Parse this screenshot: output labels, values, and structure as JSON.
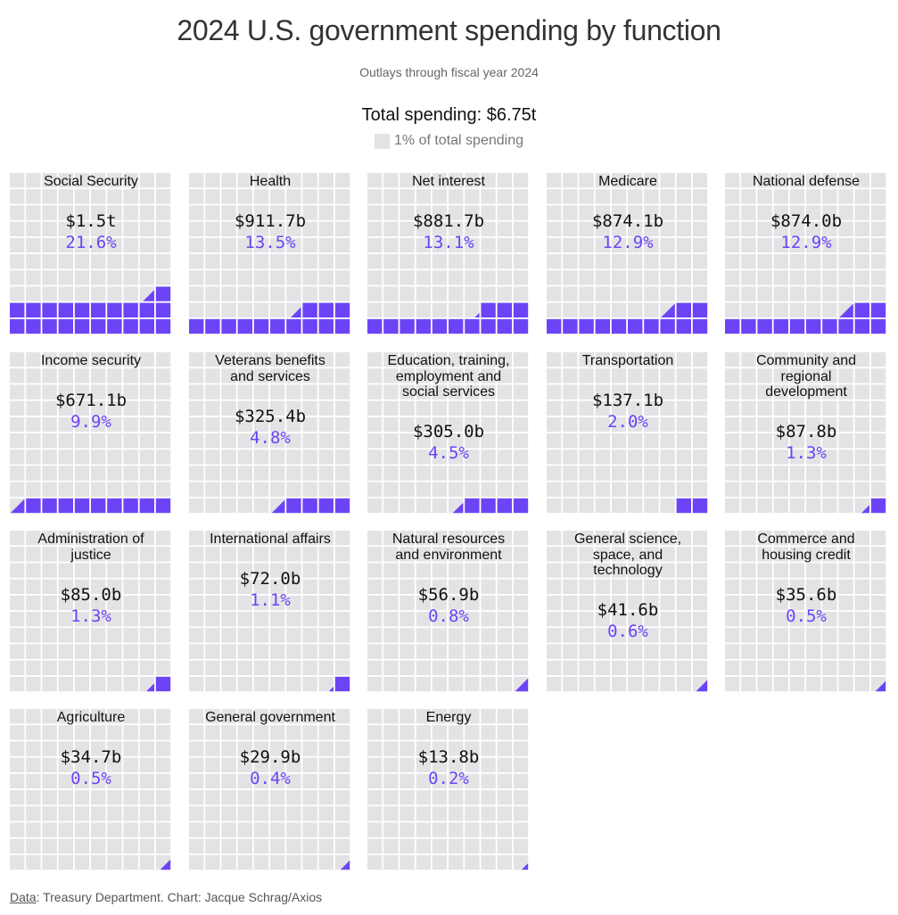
{
  "title": "2024 U.S. government spending by function",
  "subtitle": "Outlays through fiscal year 2024",
  "total_label": "Total spending: $6.75t",
  "legend_label": "1% of total spending",
  "footer": {
    "data_link": "Data",
    "text": ": Treasury Department. Chart: Jacque Schrag/Axios"
  },
  "colors": {
    "fill": "#6c44f5",
    "empty": "#e3e3e6",
    "percent_text": "#6c44f5"
  },
  "chart_data": {
    "type": "waffle",
    "title": "2024 U.S. government spending by function",
    "total": "$6.75t",
    "unit": "1% of total spending",
    "grid": "10x10",
    "categories": [
      {
        "name": "Social Security",
        "value": "$1.5t",
        "percent": 21.6
      },
      {
        "name": "Health",
        "value": "$911.7b",
        "percent": 13.5
      },
      {
        "name": "Net interest",
        "value": "$881.7b",
        "percent": 13.1
      },
      {
        "name": "Medicare",
        "value": "$874.1b",
        "percent": 12.9
      },
      {
        "name": "National defense",
        "value": "$874.0b",
        "percent": 12.9
      },
      {
        "name": "Income security",
        "value": "$671.1b",
        "percent": 9.9
      },
      {
        "name": "Veterans benefits and services",
        "value": "$325.4b",
        "percent": 4.8
      },
      {
        "name": "Education, training, employment and social services",
        "value": "$305.0b",
        "percent": 4.5
      },
      {
        "name": "Transportation",
        "value": "$137.1b",
        "percent": 2.0
      },
      {
        "name": "Community and regional development",
        "value": "$87.8b",
        "percent": 1.3
      },
      {
        "name": "Administration of justice",
        "value": "$85.0b",
        "percent": 1.3
      },
      {
        "name": "International affairs",
        "value": "$72.0b",
        "percent": 1.1
      },
      {
        "name": "Natural resources and environment",
        "value": "$56.9b",
        "percent": 0.8
      },
      {
        "name": "General science, space, and technology",
        "value": "$41.6b",
        "percent": 0.6
      },
      {
        "name": "Commerce and housing credit",
        "value": "$35.6b",
        "percent": 0.5
      },
      {
        "name": "Agriculture",
        "value": "$34.7b",
        "percent": 0.5
      },
      {
        "name": "General government",
        "value": "$29.9b",
        "percent": 0.4
      },
      {
        "name": "Energy",
        "value": "$13.8b",
        "percent": 0.2
      }
    ],
    "labels": [
      [
        "Social Security"
      ],
      [
        "Health"
      ],
      [
        "Net interest"
      ],
      [
        "Medicare"
      ],
      [
        "National defense"
      ],
      [
        "Income security"
      ],
      [
        "Veterans benefits",
        "and services"
      ],
      [
        "Education, training,",
        "employment and",
        "social services"
      ],
      [
        "Transportation"
      ],
      [
        "Community and",
        "regional",
        "development"
      ],
      [
        "Administration of",
        "justice"
      ],
      [
        "International affairs"
      ],
      [
        "Natural resources",
        "and environment"
      ],
      [
        "General science,",
        "space, and",
        "technology"
      ],
      [
        "Commerce and",
        "housing credit"
      ],
      [
        "Agriculture"
      ],
      [
        "General government"
      ],
      [
        "Energy"
      ]
    ],
    "value_labels": [
      "$1.5t",
      "$911.7b",
      "$881.7b",
      "$874.1b",
      "$874.0b",
      "$671.1b",
      "$325.4b",
      "$305.0b",
      "$137.1b",
      "$87.8b",
      "$85.0b",
      "$72.0b",
      "$56.9b",
      "$41.6b",
      "$35.6b",
      "$34.7b",
      "$29.9b",
      "$13.8b"
    ],
    "percent_labels": [
      "21.6%",
      "13.5%",
      "13.1%",
      "12.9%",
      "12.9%",
      "9.9%",
      "4.8%",
      "4.5%",
      "2.0%",
      "1.3%",
      "1.3%",
      "1.1%",
      "0.8%",
      "0.6%",
      "0.5%",
      "0.5%",
      "0.4%",
      "0.2%"
    ]
  }
}
